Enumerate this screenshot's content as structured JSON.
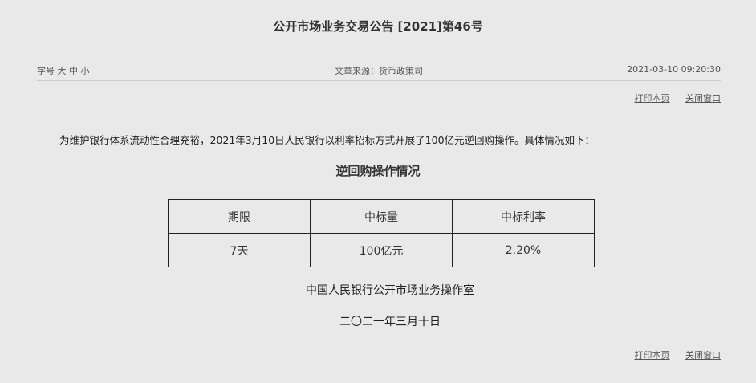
{
  "title": "公开市场业务交易公告 [2021]第46号",
  "meta": {
    "font_label": "字号",
    "font_sizes": [
      "大",
      "中",
      "小"
    ],
    "source": "文章来源：货币政策司",
    "datetime": "2021-03-10 09:20:30"
  },
  "links": {
    "print": "打印本页",
    "close": "关闭窗口"
  },
  "intro": "为维护银行体系流动性合理充裕，2021年3月10日人民银行以利率招标方式开展了100亿元逆回购操作。具体情况如下：",
  "table_title": "逆回购操作情况",
  "table": {
    "headers": [
      "期限",
      "中标量",
      "中标利率"
    ],
    "rows": [
      [
        "7天",
        "100亿元",
        "2.20%"
      ]
    ]
  },
  "signature": "中国人民银行公开市场业务操作室",
  "date": "二〇二一年三月十日"
}
